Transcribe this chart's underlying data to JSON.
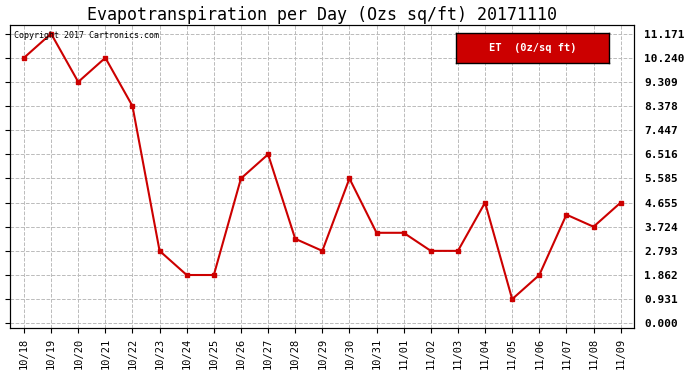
{
  "title": "Evapotranspiration per Day (Ozs sq/ft) 20171110",
  "copyright_text": "Copyright 2017 Cartronics.com",
  "legend_label": "ET  (0z/sq ft)",
  "dates": [
    "10/18",
    "10/19",
    "10/20",
    "10/21",
    "10/22",
    "10/23",
    "10/24",
    "10/25",
    "10/26",
    "10/27",
    "10/28",
    "10/29",
    "10/30",
    "10/31",
    "11/01",
    "11/02",
    "11/03",
    "11/04",
    "11/05",
    "11/06",
    "11/07",
    "11/08",
    "11/09"
  ],
  "values": [
    10.24,
    11.171,
    9.309,
    10.24,
    8.378,
    2.793,
    1.862,
    1.862,
    5.585,
    6.516,
    3.259,
    2.793,
    5.585,
    3.49,
    3.49,
    2.793,
    2.793,
    4.655,
    0.931,
    1.862,
    4.19,
    3.724,
    4.655
  ],
  "y_ticks": [
    0.0,
    0.931,
    1.862,
    2.793,
    3.724,
    4.655,
    5.585,
    6.516,
    7.447,
    8.378,
    9.309,
    10.24,
    11.171
  ],
  "line_color": "#cc0000",
  "marker_color": "#cc0000",
  "background_color": "#ffffff",
  "grid_color": "#bbbbbb",
  "title_fontsize": 12,
  "legend_bg": "#cc0000",
  "legend_text_color": "#ffffff"
}
